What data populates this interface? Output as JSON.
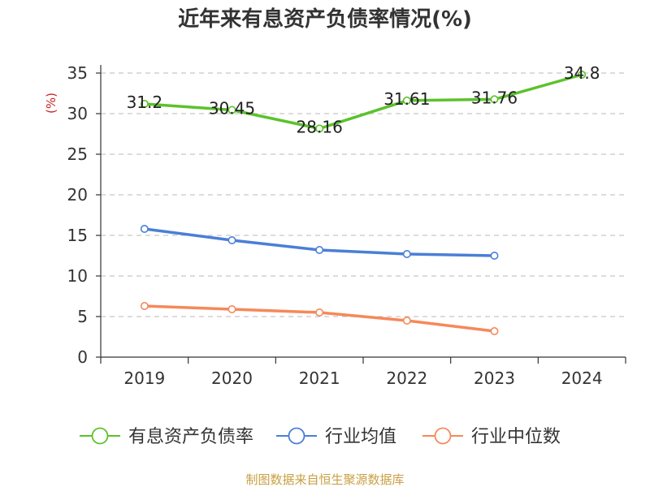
{
  "chart_data": {
    "type": "line",
    "title": "近年来有息资产负债率情况(%)",
    "ylabel": "(%)",
    "xlabel": "",
    "categories": [
      "2019",
      "2020",
      "2021",
      "2022",
      "2023",
      "2024"
    ],
    "ylim": [
      0,
      35
    ],
    "yticks": [
      0,
      5,
      10,
      15,
      20,
      25,
      30,
      35
    ],
    "grid": true,
    "legend_position": "bottom",
    "series": [
      {
        "name": "有息资产负债率",
        "color": "#5cc22c",
        "values": [
          31.2,
          30.45,
          28.16,
          31.61,
          31.76,
          34.8
        ],
        "labels": [
          "31.2",
          "30.45",
          "28.16",
          "31.61",
          "31.76",
          "34.8"
        ]
      },
      {
        "name": "行业均值",
        "color": "#4a7fd6",
        "values": [
          15.8,
          14.4,
          13.2,
          12.7,
          12.5,
          null
        ]
      },
      {
        "name": "行业中位数",
        "color": "#f5895a",
        "values": [
          6.3,
          5.9,
          5.5,
          4.5,
          3.2,
          null
        ]
      }
    ],
    "source": "制图数据来自恒生聚源数据库"
  }
}
